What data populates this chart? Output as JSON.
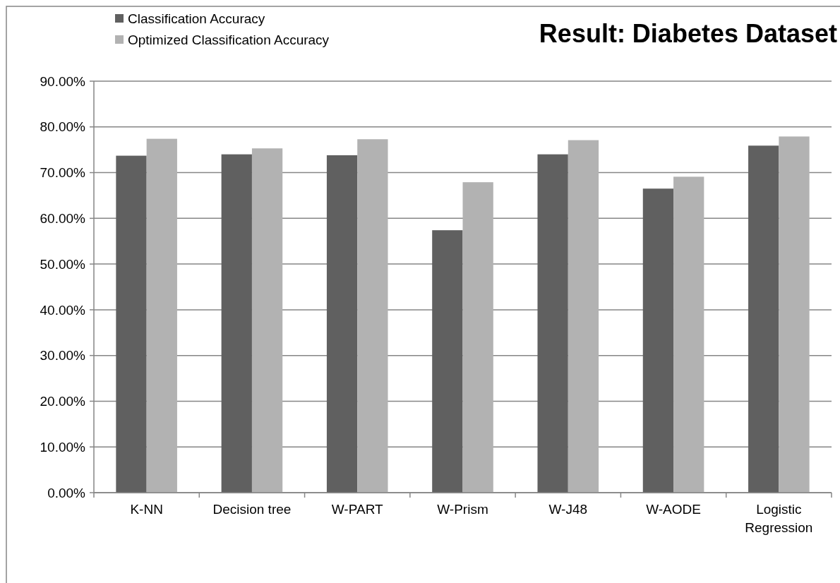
{
  "chart_data": {
    "type": "bar",
    "title": "Result: Diabetes Dataset",
    "categories": [
      "K-NN",
      "Decision tree",
      "W-PART",
      "W-Prism",
      "W-J48",
      "W-AODE",
      "Logistic Regression"
    ],
    "series": [
      {
        "name": "Classification Accuracy",
        "color": "#606060",
        "values": [
          73.7,
          74.0,
          73.8,
          57.4,
          74.0,
          66.5,
          75.9
        ]
      },
      {
        "name": "Optimized Classification Accuracy",
        "color": "#b2b2b2",
        "values": [
          77.4,
          75.3,
          77.3,
          67.9,
          77.1,
          69.1,
          77.9
        ]
      }
    ],
    "ylim": [
      0,
      90
    ],
    "yticks": [
      {
        "value": 0,
        "label": "0.00%"
      },
      {
        "value": 10,
        "label": "10.00%"
      },
      {
        "value": 20,
        "label": "20.00%"
      },
      {
        "value": 30,
        "label": "30.00%"
      },
      {
        "value": 40,
        "label": "40.00%"
      },
      {
        "value": 50,
        "label": "50.00%"
      },
      {
        "value": 60,
        "label": "60.00%"
      },
      {
        "value": 70,
        "label": "70.00%"
      },
      {
        "value": 80,
        "label": "80.00%"
      },
      {
        "value": 90,
        "label": "90.00%"
      }
    ],
    "grid": "y",
    "legend": "top left"
  }
}
